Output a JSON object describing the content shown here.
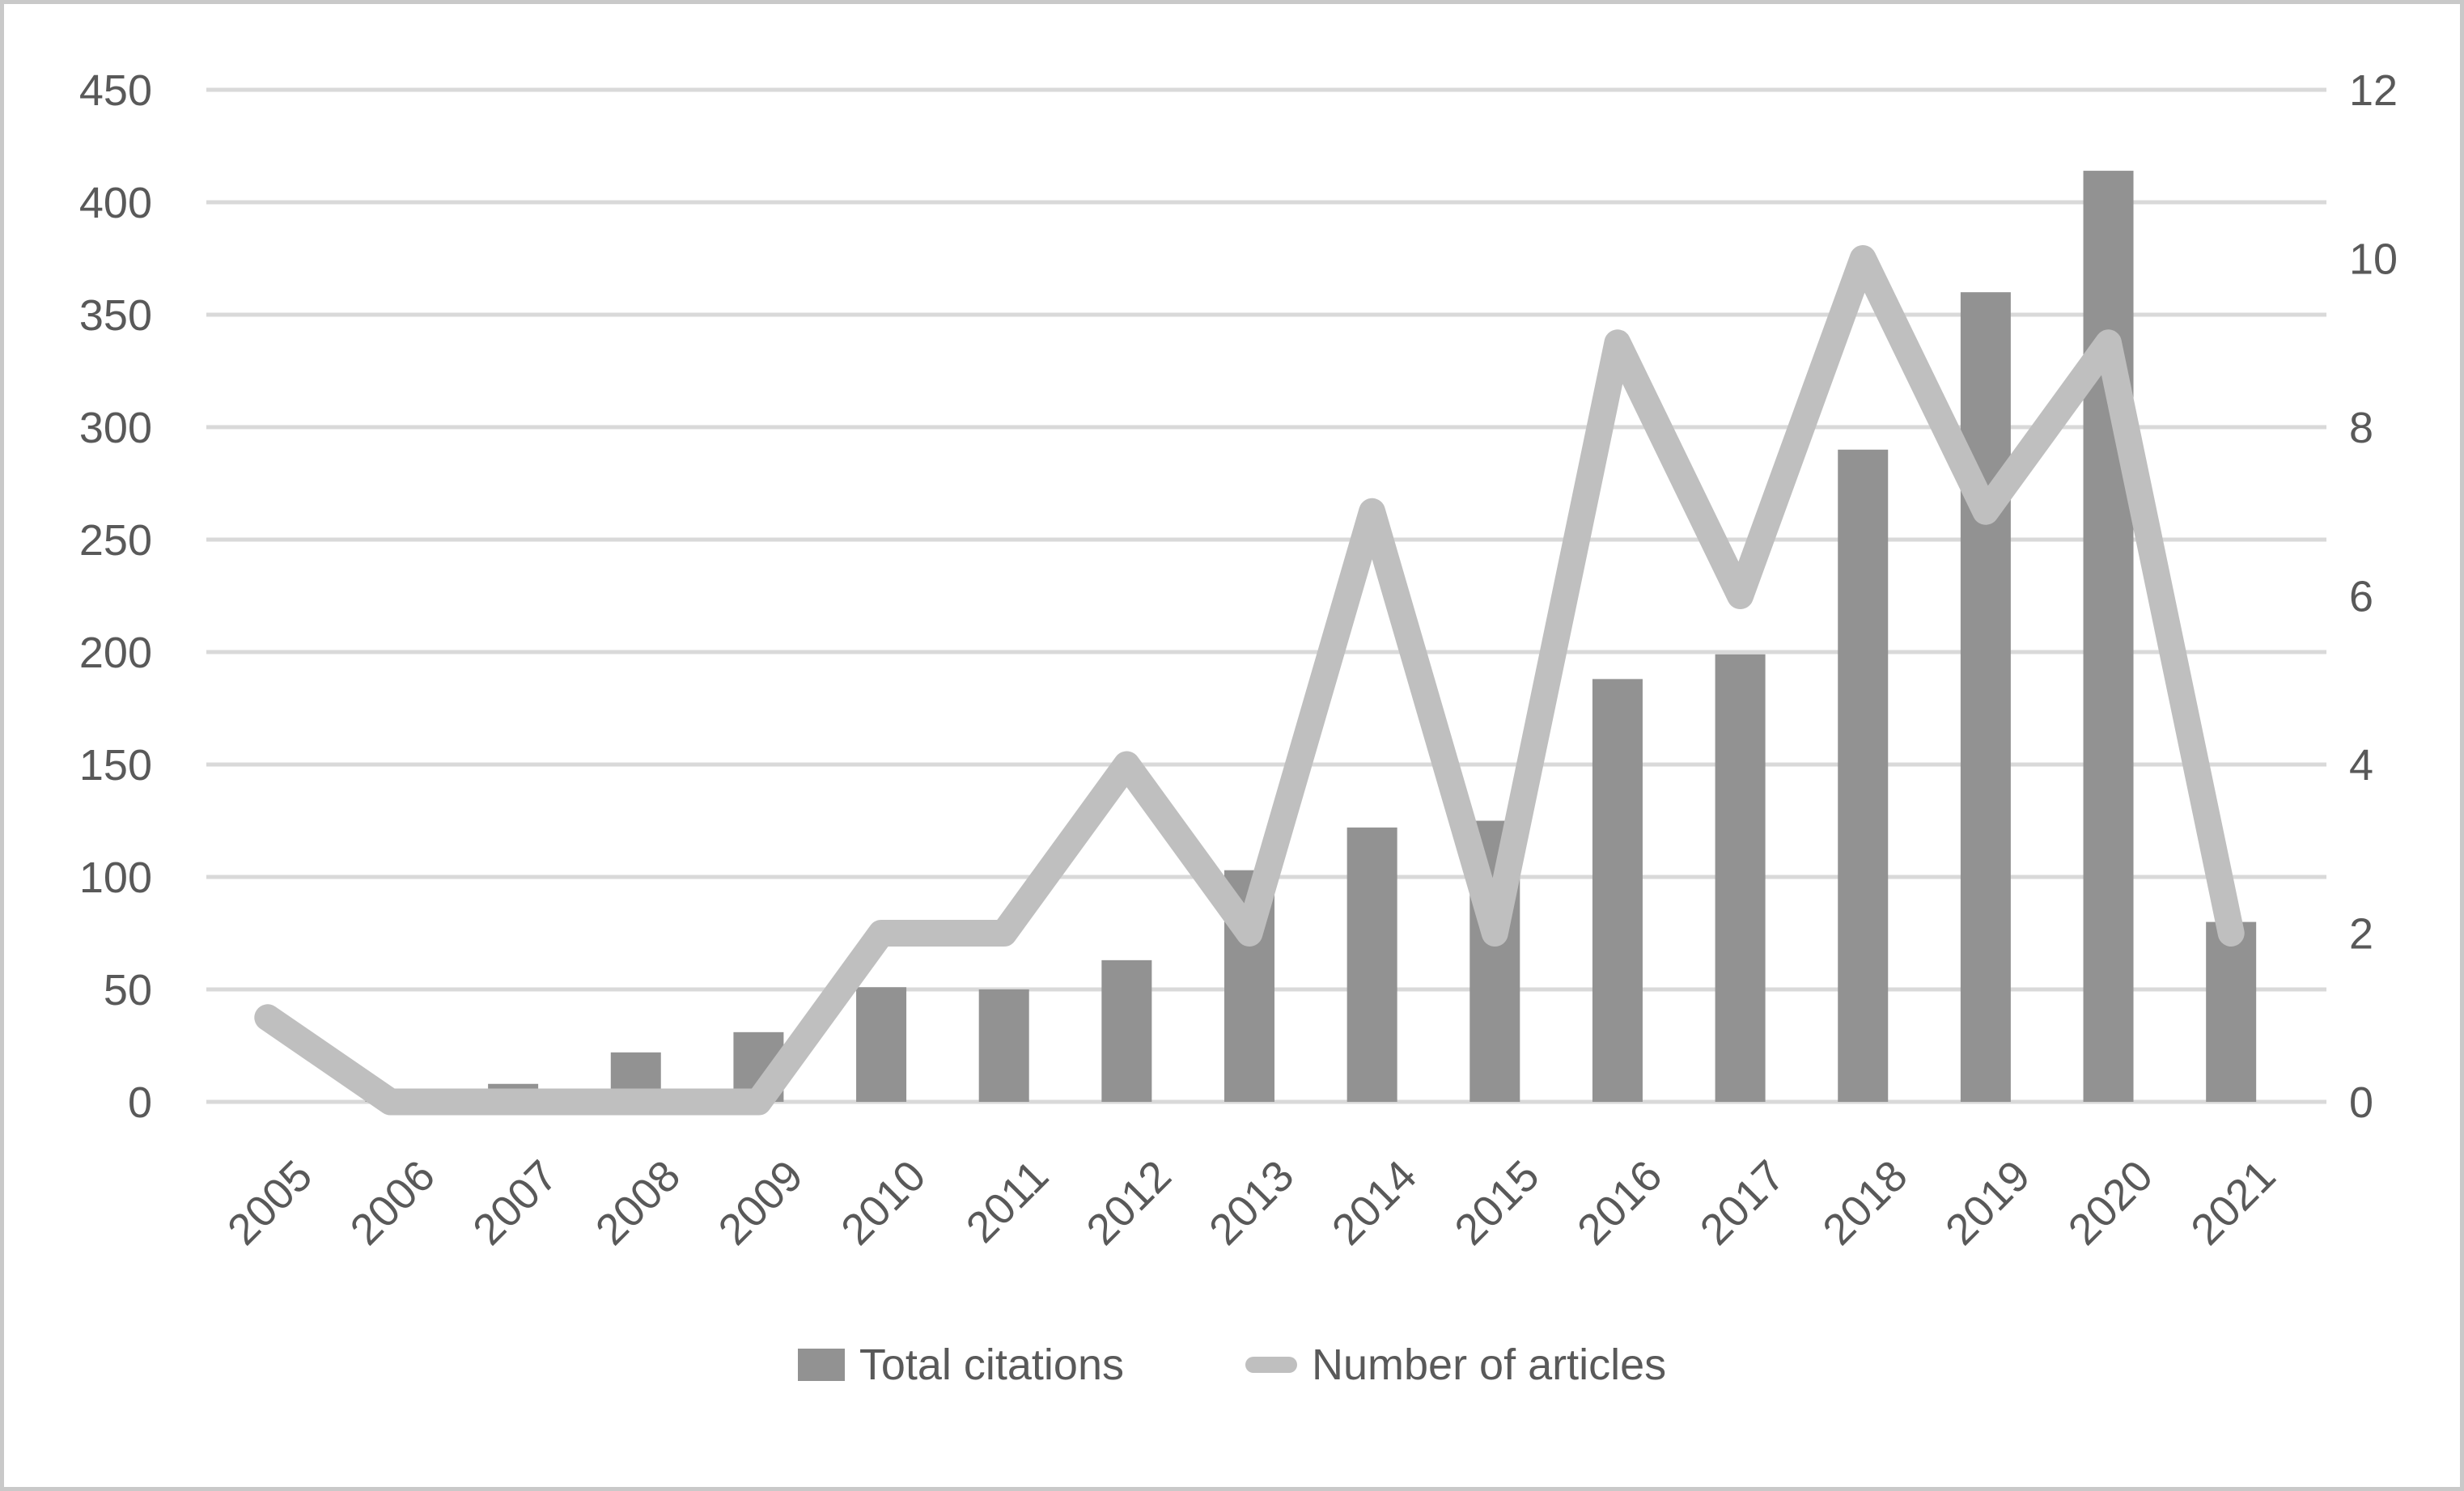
{
  "chart_data": {
    "type": "combo",
    "title": "",
    "categories": [
      "2005",
      "2006",
      "2007",
      "2008",
      "2009",
      "2010",
      "2011",
      "2012",
      "2013",
      "2014",
      "2015",
      "2016",
      "2017",
      "2018",
      "2019",
      "2020",
      "2021"
    ],
    "series": [
      {
        "name": "Total citations",
        "type": "bar",
        "axis": "left",
        "color": "#929292",
        "values": [
          0,
          3,
          8,
          22,
          31,
          51,
          50,
          63,
          103,
          122,
          125,
          188,
          199,
          290,
          360,
          414,
          80
        ]
      },
      {
        "name": "Number of articles",
        "type": "line",
        "axis": "right",
        "color": "#bfbfbf",
        "values": [
          1,
          0,
          0,
          0,
          0,
          2,
          2,
          4,
          2,
          7,
          2,
          9,
          6,
          10,
          7,
          9,
          2
        ]
      }
    ],
    "left_axis": {
      "min": 0,
      "max": 450,
      "step": 50,
      "tick_labels": [
        "0",
        "50",
        "100",
        "150",
        "200",
        "250",
        "300",
        "350",
        "400",
        "450"
      ]
    },
    "right_axis": {
      "min": 0,
      "max": 12,
      "step": 2,
      "tick_labels": [
        "0",
        "2",
        "4",
        "6",
        "8",
        "10",
        "12"
      ]
    },
    "grid": true,
    "legend_position": "bottom",
    "colors": {
      "bar": "#929292",
      "line": "#bfbfbf",
      "gridline": "#d9d9d9",
      "axis_text": "#595959",
      "border": "#c9c9c9",
      "background": "#ffffff"
    }
  }
}
